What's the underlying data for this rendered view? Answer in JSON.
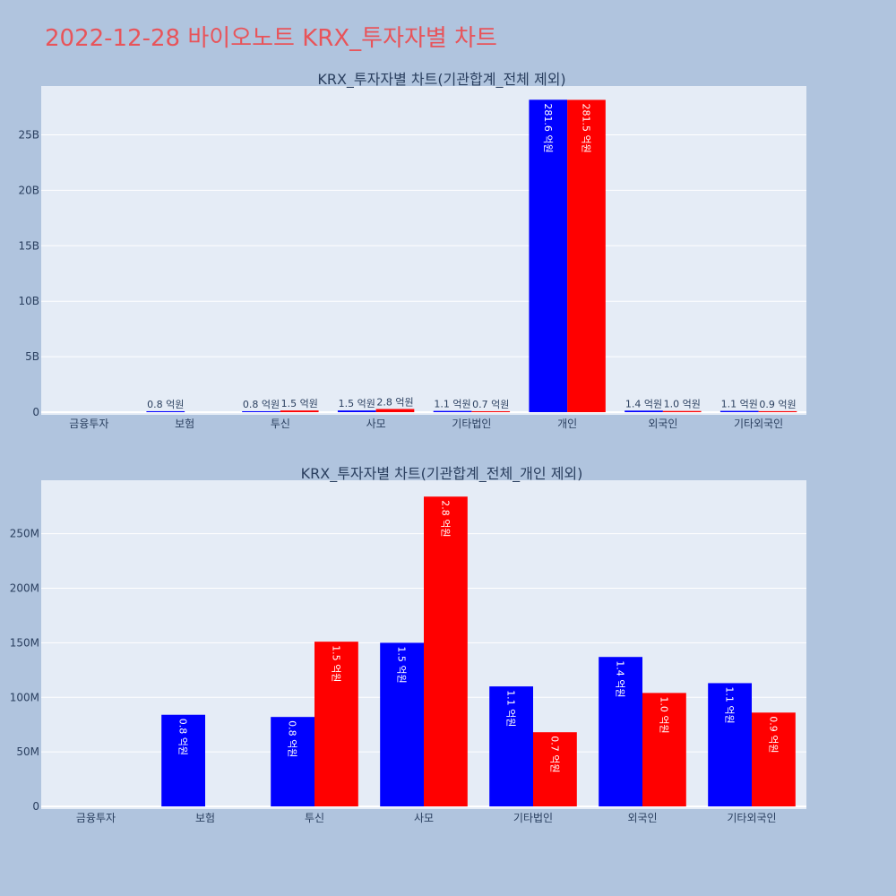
{
  "page": {
    "title": "2022-12-28 바이오노트 KRX_투자자별 차트"
  },
  "colors": {
    "background": "#b0c4de",
    "plot_bg": "#e5ecf6",
    "buy": "#0000ff",
    "sell": "#ff0000",
    "title": "#e8545a",
    "text": "#2a3f5f"
  },
  "chart_data": [
    {
      "type": "bar",
      "title": "KRX_투자자별 차트(기관합계_전체 제외)",
      "categories": [
        "금융투자",
        "보험",
        "투신",
        "사모",
        "기타법인",
        "개인",
        "외국인",
        "기타외국인"
      ],
      "series": [
        {
          "color": "#0000ff",
          "values": [
            0,
            84000000,
            82000000,
            150000000,
            110000000,
            28160000000,
            137000000,
            113000000
          ],
          "labels": [
            "",
            "0.8 억원",
            "0.8 억원",
            "1.5 억원",
            "1.1 억원",
            "281.6 억원",
            "1.4 억원",
            "1.1 억원"
          ]
        },
        {
          "color": "#ff0000",
          "values": [
            0,
            0,
            151000000,
            284000000,
            68000000,
            28150000000,
            104000000,
            86000000
          ],
          "labels": [
            "",
            "",
            "1.5 억원",
            "2.8 억원",
            "0.7 억원",
            "281.5 억원",
            "1.0 억원",
            "0.9 억원"
          ]
        }
      ],
      "yticks": [
        0,
        5000000000,
        10000000000,
        15000000000,
        20000000000,
        25000000000
      ],
      "ytick_labels": [
        "0",
        "5B",
        "10B",
        "15B",
        "20B",
        "25B"
      ],
      "ylim": [
        0,
        29400000000
      ],
      "grid": true
    },
    {
      "type": "bar",
      "title": "KRX_투자자별 차트(기관합계_전체_개인 제외)",
      "categories": [
        "금융투자",
        "보험",
        "투신",
        "사모",
        "기타법인",
        "외국인",
        "기타외국인"
      ],
      "series": [
        {
          "color": "#0000ff",
          "values": [
            0,
            84000000,
            82000000,
            150000000,
            110000000,
            137000000,
            113000000
          ],
          "labels": [
            "",
            "0.8 억원",
            "0.8 억원",
            "1.5 억원",
            "1.1 억원",
            "1.4 억원",
            "1.1 억원"
          ]
        },
        {
          "color": "#ff0000",
          "values": [
            0,
            0,
            151000000,
            284000000,
            68000000,
            104000000,
            86000000
          ],
          "labels": [
            "",
            "",
            "1.5 억원",
            "2.8 억원",
            "0.7 억원",
            "1.0 억원",
            "0.9 억원"
          ]
        }
      ],
      "yticks": [
        0,
        50000000,
        100000000,
        150000000,
        200000000,
        250000000
      ],
      "ytick_labels": [
        "0",
        "50M",
        "100M",
        "150M",
        "200M",
        "250M"
      ],
      "ylim": [
        0,
        299000000
      ],
      "grid": true
    }
  ]
}
